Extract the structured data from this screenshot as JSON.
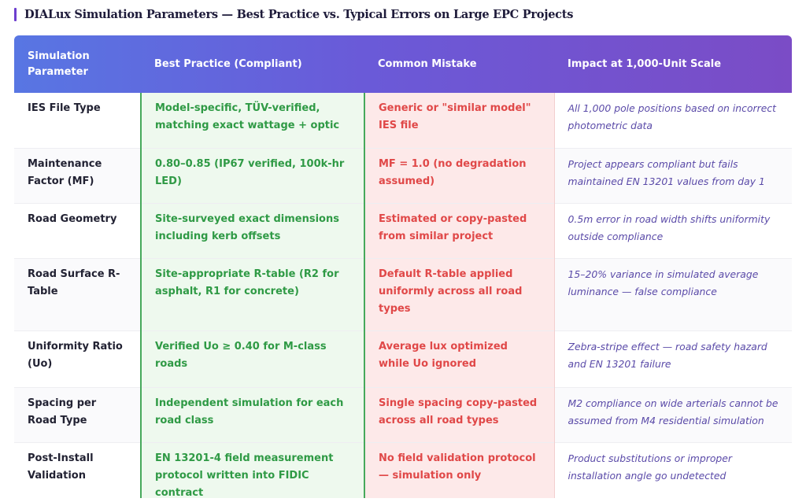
{
  "title": "DIALux Simulation Parameters — Best Practice vs. Typical Errors on Large EPC Projects",
  "colors": {
    "accent": "#6d3fcf",
    "header_start": "#5876e3",
    "header_end": "#7b4cc6",
    "best": "#2f9a45",
    "mistake": "#e04848",
    "impact": "#5a4aa8"
  },
  "table": {
    "headers": [
      "Simulation Parameter",
      "Best Practice (Compliant)",
      "Common Mistake",
      "Impact at 1,000-Unit Scale"
    ],
    "rows": [
      {
        "parameter": "IES File Type",
        "best": "Model-specific, TÜV-verified, matching exact wattage + optic",
        "mistake": "Generic or \"similar model\" IES file",
        "impact": "All 1,000 pole positions based on incorrect photometric data"
      },
      {
        "parameter": "Maintenance Factor (MF)",
        "best": "0.80–0.85 (IP67 verified, 100k-hr LED)",
        "mistake": "MF = 1.0 (no degradation assumed)",
        "impact": "Project appears compliant but fails maintained EN 13201 values from day 1"
      },
      {
        "parameter": "Road Geometry",
        "best": "Site-surveyed exact dimensions including kerb offsets",
        "mistake": "Estimated or copy-pasted from similar project",
        "impact": "0.5m error in road width shifts uniformity outside compliance"
      },
      {
        "parameter": "Road Surface R-Table",
        "best": "Site-appropriate R-table (R2 for asphalt, R1 for concrete)",
        "mistake": "Default R-table applied uniformly across all road types",
        "impact": "15–20% variance in simulated average luminance — false compliance"
      },
      {
        "parameter": "Uniformity Ratio (Uo)",
        "best": "Verified Uo ≥ 0.40 for M-class roads",
        "mistake": "Average lux optimized while Uo ignored",
        "impact": "Zebra-stripe effect — road safety hazard and EN 13201 failure"
      },
      {
        "parameter": "Spacing per Road Type",
        "best": "Independent simulation for each road class",
        "mistake": "Single spacing copy-pasted across all road types",
        "impact": "M2 compliance on wide arterials cannot be assumed from M4 residential simulation"
      },
      {
        "parameter": "Post-Install Validation",
        "best": "EN 13201-4 field measurement protocol written into FIDIC contract",
        "mistake": "No field validation protocol — simulation only",
        "impact": "Product substitutions or improper installation angle go undetected"
      }
    ]
  }
}
